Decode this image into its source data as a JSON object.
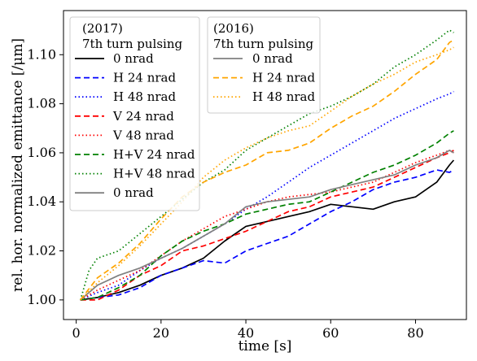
{
  "chart_data": {
    "type": "line",
    "title": "",
    "xlabel": "time [s]",
    "ylabel": "rel. hor. normalized emittance [/μm]",
    "xlim": [
      -3,
      92
    ],
    "ylim": [
      0.992,
      1.118
    ],
    "xticks": [
      0,
      20,
      40,
      60,
      80
    ],
    "yticks": [
      1.0,
      1.02,
      1.04,
      1.06,
      1.08,
      1.1
    ],
    "xtick_labels": [
      "0",
      "20",
      "40",
      "60",
      "80"
    ],
    "ytick_labels": [
      "1.00",
      "1.02",
      "1.04",
      "1.06",
      "1.08",
      "1.10"
    ],
    "grid": false,
    "legends": [
      {
        "placement": "upper-left",
        "title": [
          "(2017)",
          "7th turn pulsing"
        ],
        "entries": [
          0,
          1,
          2,
          3,
          4,
          5,
          6,
          7
        ]
      },
      {
        "placement": "upper-center",
        "title": [
          "(2016)",
          "7th turn pulsing"
        ],
        "entries": [
          8,
          9,
          10
        ]
      }
    ],
    "series": [
      {
        "name": "0 nrad",
        "group": "2017",
        "color": "#000000",
        "dash": "solid",
        "x": [
          1,
          5,
          10,
          15,
          20,
          25,
          30,
          35,
          40,
          45,
          50,
          55,
          60,
          65,
          70,
          75,
          80,
          85,
          88,
          89
        ],
        "y": [
          1.0,
          1.001,
          1.003,
          1.006,
          1.01,
          1.013,
          1.017,
          1.024,
          1.03,
          1.032,
          1.034,
          1.036,
          1.039,
          1.038,
          1.037,
          1.04,
          1.042,
          1.048,
          1.055,
          1.057
        ]
      },
      {
        "name": "H 24 nrad",
        "group": "2017",
        "color": "#0000ff",
        "dash": "dashed",
        "x": [
          1,
          5,
          10,
          15,
          20,
          25,
          30,
          35,
          40,
          45,
          50,
          55,
          60,
          65,
          70,
          75,
          80,
          85,
          88,
          89
        ],
        "y": [
          1.0,
          1.001,
          1.002,
          1.005,
          1.01,
          1.013,
          1.016,
          1.015,
          1.02,
          1.023,
          1.026,
          1.031,
          1.036,
          1.04,
          1.045,
          1.048,
          1.05,
          1.053,
          1.052,
          1.053
        ]
      },
      {
        "name": "H 48 nrad",
        "group": "2017",
        "color": "#0000ff",
        "dash": "dotted",
        "x": [
          1,
          5,
          10,
          15,
          20,
          25,
          30,
          35,
          40,
          45,
          50,
          55,
          60,
          65,
          70,
          75,
          80,
          85,
          88,
          89
        ],
        "y": [
          1.0,
          1.003,
          1.006,
          1.012,
          1.017,
          1.021,
          1.026,
          1.031,
          1.037,
          1.042,
          1.048,
          1.054,
          1.059,
          1.064,
          1.069,
          1.074,
          1.078,
          1.082,
          1.084,
          1.085
        ]
      },
      {
        "name": "V 24 nrad",
        "group": "2017",
        "color": "#ff0000",
        "dash": "dashed",
        "x": [
          1,
          5,
          10,
          15,
          20,
          25,
          30,
          35,
          40,
          45,
          50,
          55,
          60,
          65,
          70,
          75,
          80,
          85,
          88,
          89
        ],
        "y": [
          1.0,
          1.0,
          1.004,
          1.01,
          1.014,
          1.02,
          1.022,
          1.025,
          1.028,
          1.032,
          1.036,
          1.038,
          1.042,
          1.044,
          1.046,
          1.05,
          1.054,
          1.058,
          1.06,
          1.061
        ]
      },
      {
        "name": "V 48 nrad",
        "group": "2017",
        "color": "#ff0000",
        "dash": "dotted",
        "x": [
          1,
          5,
          10,
          15,
          20,
          25,
          30,
          35,
          40,
          45,
          50,
          55,
          60,
          65,
          70,
          75,
          80,
          85,
          88,
          89
        ],
        "y": [
          1.0,
          1.004,
          1.008,
          1.012,
          1.018,
          1.024,
          1.029,
          1.034,
          1.037,
          1.04,
          1.042,
          1.043,
          1.044,
          1.046,
          1.048,
          1.052,
          1.056,
          1.059,
          1.061,
          1.06
        ]
      },
      {
        "name": "H+V 24 nrad",
        "group": "2017",
        "color": "#008000",
        "dash": "dashed",
        "x": [
          1,
          5,
          10,
          15,
          20,
          25,
          30,
          35,
          40,
          45,
          50,
          55,
          60,
          65,
          70,
          75,
          80,
          85,
          88,
          89
        ],
        "y": [
          1.0,
          1.001,
          1.005,
          1.01,
          1.018,
          1.024,
          1.028,
          1.031,
          1.035,
          1.037,
          1.039,
          1.04,
          1.044,
          1.048,
          1.052,
          1.055,
          1.059,
          1.064,
          1.068,
          1.069
        ]
      },
      {
        "name": "H+V 48 nrad",
        "group": "2017",
        "color": "#008000",
        "dash": "dotted",
        "x": [
          1,
          3,
          5,
          10,
          15,
          20,
          25,
          30,
          35,
          40,
          45,
          50,
          55,
          60,
          65,
          70,
          75,
          80,
          85,
          88,
          89
        ],
        "y": [
          1.0,
          1.012,
          1.017,
          1.02,
          1.027,
          1.034,
          1.041,
          1.048,
          1.053,
          1.061,
          1.066,
          1.071,
          1.076,
          1.079,
          1.083,
          1.088,
          1.095,
          1.1,
          1.106,
          1.11,
          1.109
        ]
      },
      {
        "name": "0 nrad",
        "group": "2017",
        "color": "#808080",
        "dash": "solid",
        "x": [
          1,
          5,
          10,
          15,
          20,
          25,
          30,
          35,
          40,
          45,
          50,
          55,
          60,
          65,
          70,
          75,
          80,
          85,
          88,
          89
        ],
        "y": [
          1.0,
          1.006,
          1.01,
          1.013,
          1.017,
          1.021,
          1.026,
          1.031,
          1.038,
          1.04,
          1.041,
          1.042,
          1.045,
          1.047,
          1.049,
          1.051,
          1.055,
          1.058,
          1.061,
          1.06
        ]
      },
      {
        "name": "0 nrad",
        "group": "2016",
        "color": "#808080",
        "dash": "solid",
        "x": [],
        "y": []
      },
      {
        "name": "H 24 nrad",
        "group": "2016",
        "color": "#ffa500",
        "dash": "dashed",
        "x": [
          1,
          5,
          10,
          15,
          20,
          25,
          30,
          35,
          40,
          45,
          50,
          55,
          60,
          65,
          70,
          75,
          80,
          85,
          88,
          89
        ],
        "y": [
          1.0,
          1.009,
          1.015,
          1.023,
          1.033,
          1.042,
          1.048,
          1.052,
          1.055,
          1.06,
          1.061,
          1.064,
          1.07,
          1.075,
          1.079,
          1.085,
          1.092,
          1.098,
          1.105,
          1.106
        ]
      },
      {
        "name": "H 48 nrad",
        "group": "2016",
        "color": "#ffa500",
        "dash": "dotted",
        "x": [
          1,
          5,
          10,
          15,
          20,
          25,
          30,
          35,
          40,
          45,
          50,
          55,
          60,
          65,
          70,
          75,
          80,
          85,
          88,
          89
        ],
        "y": [
          1.0,
          1.007,
          1.014,
          1.022,
          1.031,
          1.04,
          1.05,
          1.057,
          1.062,
          1.066,
          1.069,
          1.071,
          1.077,
          1.083,
          1.088,
          1.092,
          1.097,
          1.1,
          1.102,
          1.103
        ]
      }
    ]
  }
}
